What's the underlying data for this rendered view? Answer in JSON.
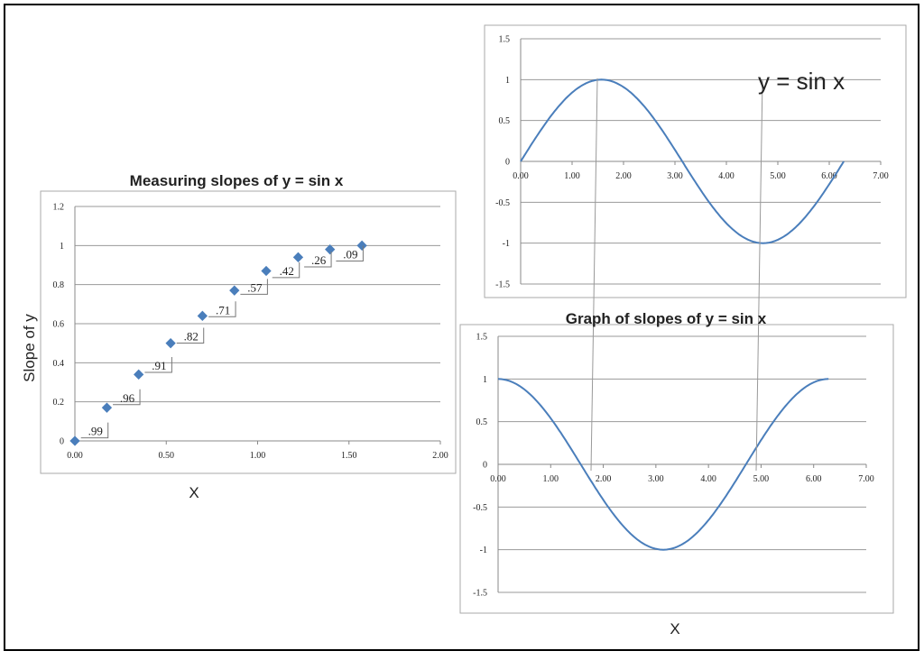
{
  "chart_data": [
    {
      "type": "scatter",
      "title": "Measuring slopes of y = sin x",
      "xlabel": "X",
      "ylabel": "Slope of y",
      "xlim": [
        0,
        2
      ],
      "ylim": [
        0,
        1.2
      ],
      "x_ticks": [
        "0.00",
        "0.50",
        "1.00",
        "1.50",
        "2.00"
      ],
      "y_ticks": [
        "0",
        "0.2",
        "0.4",
        "0.6",
        "0.8",
        "1",
        "1.2"
      ],
      "grid": true,
      "marker_color": "#4a7ebb",
      "x": [
        0,
        0.175,
        0.349,
        0.524,
        0.698,
        0.873,
        1.047,
        1.222,
        1.396,
        1.571
      ],
      "y": [
        0,
        0.17,
        0.34,
        0.5,
        0.64,
        0.77,
        0.87,
        0.94,
        0.98,
        1.0
      ],
      "slope_labels": [
        ".99",
        ".96",
        ".91",
        ".82",
        ".71",
        ".57",
        ".42",
        ".26",
        ".09"
      ]
    },
    {
      "type": "line",
      "annotation": "y = sin x",
      "function": "sin",
      "xlim": [
        0,
        7
      ],
      "ylim": [
        -1.5,
        1.5
      ],
      "x_range": [
        0,
        6.283
      ],
      "x_ticks": [
        "0.00",
        "1.00",
        "2.00",
        "3.00",
        "4.00",
        "5.00",
        "6.00",
        "7.00"
      ],
      "y_ticks": [
        "-1.5",
        "-1",
        "-0.5",
        "0",
        "0.5",
        "1",
        "1.5"
      ],
      "grid": true,
      "line_color": "#4a7ebb"
    },
    {
      "type": "line",
      "title": "Graph of slopes of y = sin x",
      "xlabel": "X",
      "function": "cos",
      "xlim": [
        0,
        7
      ],
      "ylim": [
        -1.5,
        1.5
      ],
      "x_range": [
        0,
        6.283
      ],
      "x_ticks": [
        "0.00",
        "1.00",
        "2.00",
        "3.00",
        "4.00",
        "5.00",
        "6.00",
        "7.00"
      ],
      "y_ticks": [
        "-1.5",
        "-1",
        "-0.5",
        "0",
        "0.5",
        "1",
        "1.5"
      ],
      "grid": true,
      "line_color": "#4a7ebb"
    }
  ]
}
